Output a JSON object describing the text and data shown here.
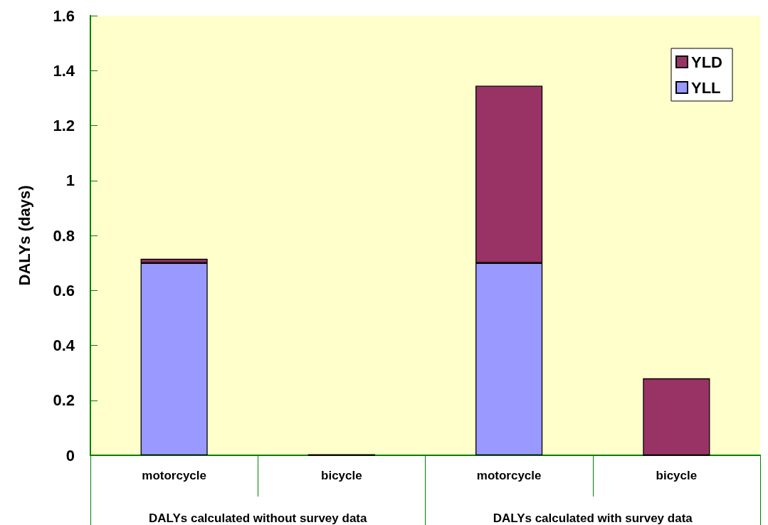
{
  "chart_data": {
    "type": "bar",
    "stacked": true,
    "ylabel": "DALYs (days)",
    "categories": [
      "motorcycle",
      "bicycle",
      "motorcycle",
      "bicycle"
    ],
    "series": [
      {
        "name": "YLL",
        "color": "#9999ff",
        "values": [
          0.7,
          0,
          0.7,
          0
        ]
      },
      {
        "name": "YLD",
        "color": "#993366",
        "values": [
          0.015,
          0.004,
          0.645,
          0.28
        ]
      }
    ],
    "ylim": [
      0,
      1.6
    ],
    "yticks": [
      0,
      0.2,
      0.4,
      0.6,
      0.8,
      1,
      1.2,
      1.4,
      1.6
    ],
    "legend": "top right",
    "annotations": [
      "DALYs calculated without survey data",
      "DALYs calculated with survey data"
    ]
  }
}
